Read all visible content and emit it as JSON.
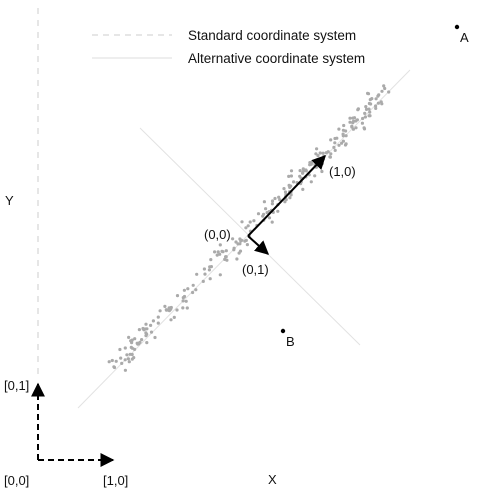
{
  "legend": {
    "standard": "Standard coordinate system",
    "alternative": "Alternative coordinate system"
  },
  "axes": {
    "x_label": "X",
    "y_label": "Y"
  },
  "standard_system": {
    "origin_label": "[0,0]",
    "x_unit_label": "[1,0]",
    "y_unit_label": "[0,1]"
  },
  "alternative_system": {
    "origin_label": "(0,0)",
    "u_unit_label": "(1,0)",
    "v_unit_label": "(0,1)"
  },
  "points": [
    {
      "name": "A",
      "label": "A"
    },
    {
      "name": "B",
      "label": "B"
    }
  ],
  "colors": {
    "points": "#aaaaaa",
    "arrows": "#000000",
    "guide_lines": "#dddddd",
    "dashed_axes": "#cccccc"
  }
}
